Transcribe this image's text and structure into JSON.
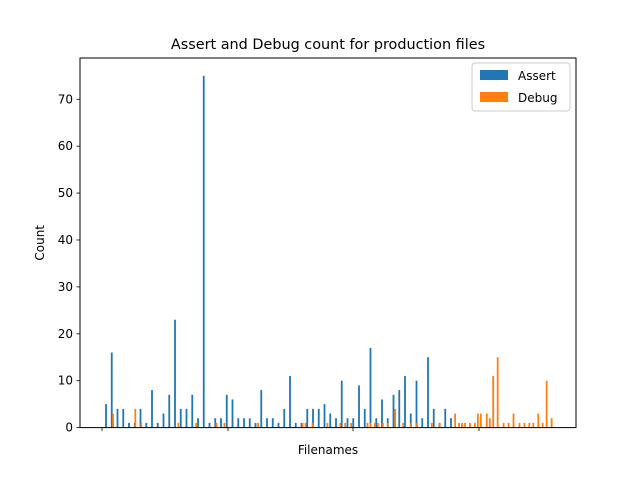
{
  "chart_data": {
    "type": "bar",
    "title": "Assert and Debug count for production files",
    "xlabel": "Filenames",
    "ylabel": "Count",
    "ylim": [
      0,
      78.8
    ],
    "yticks": [
      0,
      10,
      20,
      30,
      40,
      50,
      60,
      70
    ],
    "legend_position": "top-right",
    "grid": false,
    "series": [
      {
        "name": "Assert",
        "color": "#1f77b4",
        "values": [
          5,
          16,
          4,
          4,
          1,
          1,
          4,
          1,
          8,
          1,
          3,
          7,
          23,
          4,
          4,
          7,
          2,
          75,
          1,
          2,
          2,
          7,
          6,
          2,
          2,
          2,
          1,
          8,
          2,
          2,
          1,
          4,
          11,
          1,
          1,
          4,
          4,
          4,
          5,
          3,
          2,
          10,
          2,
          2,
          9,
          4,
          17,
          2,
          6,
          2,
          7,
          8,
          11,
          3,
          10,
          2,
          15,
          4,
          1,
          4,
          2
        ]
      },
      {
        "name": "Debug",
        "color": "#ff7f0e",
        "points": [
          {
            "x": 4.1,
            "v": 3
          },
          {
            "x": 26.6,
            "v": 4
          },
          {
            "x": 32.6,
            "v": 1
          },
          {
            "x": 70.1,
            "v": 1
          },
          {
            "x": 88.1,
            "v": 1
          },
          {
            "x": 108.6,
            "v": 1
          },
          {
            "x": 116.6,
            "v": 1
          },
          {
            "x": 150.6,
            "v": 1
          },
          {
            "x": 195.6,
            "v": 1
          },
          {
            "x": 198.6,
            "v": 1
          },
          {
            "x": 205.6,
            "v": 1
          },
          {
            "x": 220.6,
            "v": 1
          },
          {
            "x": 233.6,
            "v": 1
          },
          {
            "x": 238.6,
            "v": 1
          },
          {
            "x": 244.6,
            "v": 1
          },
          {
            "x": 261.1,
            "v": 1
          },
          {
            "x": 264.1,
            "v": 1
          },
          {
            "x": 268.6,
            "v": 1
          },
          {
            "x": 271.6,
            "v": 1
          },
          {
            "x": 276.6,
            "v": 1
          },
          {
            "x": 281.6,
            "v": 1
          },
          {
            "x": 289.1,
            "v": 4
          },
          {
            "x": 297.1,
            "v": 1
          },
          {
            "x": 305.1,
            "v": 1
          },
          {
            "x": 311.1,
            "v": 1
          },
          {
            "x": 326.1,
            "v": 1
          },
          {
            "x": 334.1,
            "v": 1
          },
          {
            "x": 349.6,
            "v": 3
          },
          {
            "x": 353.6,
            "v": 1
          },
          {
            "x": 356.6,
            "v": 1
          },
          {
            "x": 359.6,
            "v": 1
          },
          {
            "x": 364.6,
            "v": 1
          },
          {
            "x": 369.6,
            "v": 1
          },
          {
            "x": 372.6,
            "v": 3
          },
          {
            "x": 375.6,
            "v": 3
          },
          {
            "x": 381.6,
            "v": 3
          },
          {
            "x": 384.6,
            "v": 2
          },
          {
            "x": 388.1,
            "v": 11
          },
          {
            "x": 392.6,
            "v": 15
          },
          {
            "x": 398.6,
            "v": 1
          },
          {
            "x": 403.6,
            "v": 1
          },
          {
            "x": 408.6,
            "v": 3
          },
          {
            "x": 414.6,
            "v": 1
          },
          {
            "x": 419.6,
            "v": 1
          },
          {
            "x": 424.6,
            "v": 1
          },
          {
            "x": 428.6,
            "v": 1
          },
          {
            "x": 433.6,
            "v": 3
          },
          {
            "x": 438.1,
            "v": 1
          },
          {
            "x": 442.1,
            "v": 10
          },
          {
            "x": 447.1,
            "v": 2
          }
        ]
      }
    ]
  }
}
